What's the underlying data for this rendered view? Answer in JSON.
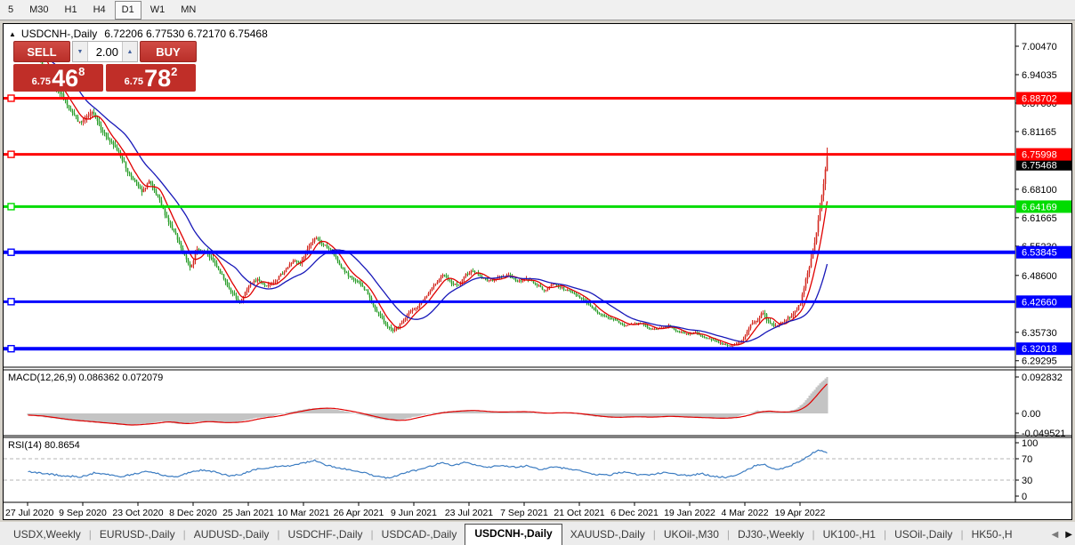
{
  "toolbar": {
    "items": [
      {
        "label": "5",
        "active": false
      },
      {
        "label": "M30",
        "active": false
      },
      {
        "label": "H1",
        "active": false
      },
      {
        "label": "H4",
        "active": false
      },
      {
        "label": "D1",
        "active": true
      },
      {
        "label": "W1",
        "active": false
      },
      {
        "label": "MN",
        "active": false
      }
    ]
  },
  "chart": {
    "collapse_arrow": "▲",
    "symbol": "USDCNH-,Daily",
    "ohlc": "6.72206 6.77530 6.72170 6.75468"
  },
  "trade_panel": {
    "sell_label": "SELL",
    "buy_label": "BUY",
    "volume": "2.00",
    "spinner_down": "▼",
    "spinner_up": "▲",
    "sell_price": {
      "prefix": "6.75",
      "big": "46",
      "sup": "8"
    },
    "buy_price": {
      "prefix": "6.75",
      "big": "78",
      "sup": "2"
    },
    "button_color": "#c8423c",
    "price_box_color": "#c02e28"
  },
  "indicators": {
    "macd_label": "MACD(12,26,9) 0.086362 0.072079",
    "rsi_label": "RSI(14) 80.8654"
  },
  "price_axis": {
    "ticks": [
      {
        "v": 7.0047,
        "label": "7.00470"
      },
      {
        "v": 6.94035,
        "label": "6.94035"
      },
      {
        "v": 6.876,
        "label": "6.87600"
      },
      {
        "v": 6.81165,
        "label": "6.81165"
      },
      {
        "v": 6.681,
        "label": "6.68100"
      },
      {
        "v": 6.61665,
        "label": "6.61665"
      },
      {
        "v": 6.5523,
        "label": "6.55230"
      },
      {
        "v": 6.486,
        "label": "6.48600"
      },
      {
        "v": 6.3573,
        "label": "6.35730"
      },
      {
        "v": 6.29295,
        "label": "6.29295"
      }
    ],
    "line_labels": [
      {
        "v": 6.88702,
        "label": "6.88702",
        "color": "#fe0000",
        "thickness": 3
      },
      {
        "v": 6.75998,
        "label": "6.75998",
        "color": "#fe0000",
        "thickness": 3
      },
      {
        "v": 6.64169,
        "label": "6.64169",
        "color": "#00dc00",
        "thickness": 3
      },
      {
        "v": 6.53845,
        "label": "6.53845",
        "color": "#0000fe",
        "thickness": 4
      },
      {
        "v": 6.4266,
        "label": "6.42660",
        "color": "#0000fe",
        "thickness": 3
      },
      {
        "v": 6.32018,
        "label": "6.32018",
        "color": "#0000fe",
        "thickness": 4
      }
    ],
    "last_price": {
      "v": 6.75468,
      "label": "6.75468",
      "bg": "#000000"
    }
  },
  "macd_axis": {
    "ticks": [
      {
        "v": 0.092832,
        "label": "0.092832"
      },
      {
        "v": 0.0,
        "label": "0.00"
      },
      {
        "v": -0.049521,
        "label": "-0.049521"
      }
    ]
  },
  "rsi_axis": {
    "ticks": [
      {
        "v": 100,
        "label": "100",
        "dashed": false
      },
      {
        "v": 70,
        "label": "70",
        "dashed": true
      },
      {
        "v": 30,
        "label": "30",
        "dashed": true
      },
      {
        "v": 0,
        "label": "0",
        "dashed": false
      }
    ]
  },
  "date_axis": [
    "27 Jul 2020",
    "9 Sep 2020",
    "23 Oct 2020",
    "8 Dec 2020",
    "25 Jan 2021",
    "10 Mar 2021",
    "26 Apr 2021",
    "9 Jun 2021",
    "23 Jul 2021",
    "7 Sep 2021",
    "21 Oct 2021",
    "6 Dec 2021",
    "19 Jan 2022",
    "4 Mar 2022",
    "19 Apr 2022"
  ],
  "tabs": {
    "items": [
      {
        "label": "USDX,Weekly",
        "active": false
      },
      {
        "label": "EURUSD-,Daily",
        "active": false
      },
      {
        "label": "AUDUSD-,Daily",
        "active": false
      },
      {
        "label": "USDCHF-,Daily",
        "active": false
      },
      {
        "label": "USDCAD-,Daily",
        "active": false
      },
      {
        "label": "USDCNH-,Daily",
        "active": true
      },
      {
        "label": "XAUUSD-,Daily",
        "active": false
      },
      {
        "label": "UKOil-,M30",
        "active": false
      },
      {
        "label": "DJ30-,Weekly",
        "active": false
      },
      {
        "label": "UK100-,H1",
        "active": false
      },
      {
        "label": "USOil-,Daily",
        "active": false
      },
      {
        "label": "HK50-,H",
        "active": false
      }
    ],
    "scroll_left": "◀",
    "scroll_right": "▶"
  },
  "chart_data": {
    "type": "candlestick",
    "symbol": "USDCNH-",
    "timeframe": "Daily",
    "title": "USDCNH-,Daily",
    "last_bar": {
      "open": 6.72206,
      "high": 6.7753,
      "low": 6.7217,
      "close": 6.75468
    },
    "price_range": [
      6.29295,
      7.0047
    ],
    "horizontal_levels": [
      6.88702,
      6.75998,
      6.64169,
      6.53845,
      6.4266,
      6.32018
    ],
    "x_tick_labels": [
      "27 Jul 2020",
      "9 Sep 2020",
      "23 Oct 2020",
      "8 Dec 2020",
      "25 Jan 2021",
      "10 Mar 2021",
      "26 Apr 2021",
      "9 Jun 2021",
      "23 Jul 2021",
      "7 Sep 2021",
      "21 Oct 2021",
      "6 Dec 2021",
      "19 Jan 2022",
      "4 Mar 2022",
      "19 Apr 2022"
    ],
    "price_path": [
      [
        0.0,
        6.99,
        0.012
      ],
      [
        0.009,
        7.0,
        0.012
      ],
      [
        0.018,
        6.962,
        0.012
      ],
      [
        0.029,
        6.93,
        0.012
      ],
      [
        0.04,
        6.9,
        0.011
      ],
      [
        0.051,
        6.868,
        0.011
      ],
      [
        0.065,
        6.83,
        0.011
      ],
      [
        0.073,
        6.842,
        0.011
      ],
      [
        0.082,
        6.856,
        0.011
      ],
      [
        0.091,
        6.82,
        0.011
      ],
      [
        0.102,
        6.79,
        0.011
      ],
      [
        0.114,
        6.765,
        0.011
      ],
      [
        0.125,
        6.72,
        0.011
      ],
      [
        0.134,
        6.7,
        0.01
      ],
      [
        0.143,
        6.672,
        0.01
      ],
      [
        0.151,
        6.7,
        0.01
      ],
      [
        0.163,
        6.66,
        0.01
      ],
      [
        0.174,
        6.615,
        0.01
      ],
      [
        0.185,
        6.575,
        0.01
      ],
      [
        0.196,
        6.53,
        0.01
      ],
      [
        0.203,
        6.505,
        0.01
      ],
      [
        0.212,
        6.545,
        0.01
      ],
      [
        0.223,
        6.538,
        0.009
      ],
      [
        0.234,
        6.512,
        0.009
      ],
      [
        0.245,
        6.478,
        0.009
      ],
      [
        0.254,
        6.45,
        0.009
      ],
      [
        0.265,
        6.42,
        0.009
      ],
      [
        0.276,
        6.462,
        0.009
      ],
      [
        0.287,
        6.478,
        0.008
      ],
      [
        0.298,
        6.462,
        0.008
      ],
      [
        0.31,
        6.475,
        0.008
      ],
      [
        0.321,
        6.496,
        0.008
      ],
      [
        0.332,
        6.52,
        0.008
      ],
      [
        0.341,
        6.512,
        0.008
      ],
      [
        0.35,
        6.548,
        0.009
      ],
      [
        0.359,
        6.572,
        0.009
      ],
      [
        0.367,
        6.558,
        0.008
      ],
      [
        0.379,
        6.545,
        0.008
      ],
      [
        0.39,
        6.51,
        0.008
      ],
      [
        0.401,
        6.484,
        0.008
      ],
      [
        0.412,
        6.472,
        0.008
      ],
      [
        0.423,
        6.452,
        0.008
      ],
      [
        0.434,
        6.412,
        0.008
      ],
      [
        0.445,
        6.382,
        0.008
      ],
      [
        0.457,
        6.358,
        0.008
      ],
      [
        0.465,
        6.372,
        0.008
      ],
      [
        0.477,
        6.402,
        0.007
      ],
      [
        0.488,
        6.415,
        0.007
      ],
      [
        0.499,
        6.44,
        0.007
      ],
      [
        0.51,
        6.468,
        0.007
      ],
      [
        0.519,
        6.488,
        0.007
      ],
      [
        0.53,
        6.468,
        0.007
      ],
      [
        0.539,
        6.462,
        0.007
      ],
      [
        0.548,
        6.488,
        0.007
      ],
      [
        0.557,
        6.498,
        0.007
      ],
      [
        0.568,
        6.48,
        0.006
      ],
      [
        0.579,
        6.474,
        0.006
      ],
      [
        0.59,
        6.482,
        0.006
      ],
      [
        0.601,
        6.488,
        0.006
      ],
      [
        0.612,
        6.472,
        0.006
      ],
      [
        0.624,
        6.478,
        0.006
      ],
      [
        0.635,
        6.468,
        0.006
      ],
      [
        0.646,
        6.452,
        0.006
      ],
      [
        0.657,
        6.468,
        0.006
      ],
      [
        0.668,
        6.458,
        0.006
      ],
      [
        0.679,
        6.448,
        0.006
      ],
      [
        0.69,
        6.438,
        0.006
      ],
      [
        0.701,
        6.422,
        0.006
      ],
      [
        0.713,
        6.402,
        0.006
      ],
      [
        0.724,
        6.39,
        0.005
      ],
      [
        0.735,
        6.385,
        0.005
      ],
      [
        0.746,
        6.372,
        0.005
      ],
      [
        0.757,
        6.377,
        0.005
      ],
      [
        0.768,
        6.378,
        0.005
      ],
      [
        0.779,
        6.364,
        0.005
      ],
      [
        0.791,
        6.366,
        0.005
      ],
      [
        0.802,
        6.372,
        0.005
      ],
      [
        0.813,
        6.359,
        0.005
      ],
      [
        0.824,
        6.353,
        0.005
      ],
      [
        0.835,
        6.357,
        0.005
      ],
      [
        0.846,
        6.346,
        0.005
      ],
      [
        0.857,
        6.34,
        0.005
      ],
      [
        0.869,
        6.332,
        0.006
      ],
      [
        0.878,
        6.325,
        0.006
      ],
      [
        0.886,
        6.33,
        0.006
      ],
      [
        0.895,
        6.34,
        0.007
      ],
      [
        0.904,
        6.372,
        0.009
      ],
      [
        0.913,
        6.385,
        0.009
      ],
      [
        0.92,
        6.403,
        0.01
      ],
      [
        0.926,
        6.382,
        0.009
      ],
      [
        0.933,
        6.372,
        0.008
      ],
      [
        0.94,
        6.376,
        0.008
      ],
      [
        0.946,
        6.383,
        0.008
      ],
      [
        0.953,
        6.392,
        0.008
      ],
      [
        0.96,
        6.405,
        0.009
      ],
      [
        0.967,
        6.425,
        0.01
      ],
      [
        0.973,
        6.472,
        0.012
      ],
      [
        0.98,
        6.522,
        0.014
      ],
      [
        0.987,
        6.585,
        0.016
      ],
      [
        0.993,
        6.66,
        0.018
      ],
      [
        1.0,
        6.7547,
        0.016
      ]
    ],
    "macd": {
      "params": "12,26,9",
      "current_main": 0.086362,
      "current_signal": 0.072079,
      "range": [
        -0.049521,
        0.092832
      ],
      "path": [
        [
          0.0,
          -0.004
        ],
        [
          0.045,
          -0.016
        ],
        [
          0.089,
          -0.024
        ],
        [
          0.122,
          -0.03
        ],
        [
          0.15,
          -0.026
        ],
        [
          0.167,
          -0.02
        ],
        [
          0.189,
          -0.027
        ],
        [
          0.217,
          -0.02
        ],
        [
          0.239,
          -0.024
        ],
        [
          0.262,
          -0.022
        ],
        [
          0.284,
          -0.012
        ],
        [
          0.306,
          -0.007
        ],
        [
          0.328,
          0.004
        ],
        [
          0.351,
          0.012
        ],
        [
          0.373,
          0.014
        ],
        [
          0.395,
          0.006
        ],
        [
          0.418,
          -0.004
        ],
        [
          0.44,
          -0.015
        ],
        [
          0.462,
          -0.019
        ],
        [
          0.484,
          -0.008
        ],
        [
          0.507,
          0.001
        ],
        [
          0.529,
          0.006
        ],
        [
          0.551,
          0.008
        ],
        [
          0.573,
          0.004
        ],
        [
          0.596,
          0.004
        ],
        [
          0.618,
          0.005
        ],
        [
          0.64,
          0.0
        ],
        [
          0.663,
          0.003
        ],
        [
          0.685,
          -0.001
        ],
        [
          0.707,
          -0.007
        ],
        [
          0.729,
          -0.011
        ],
        [
          0.752,
          -0.008
        ],
        [
          0.774,
          -0.01
        ],
        [
          0.796,
          -0.007
        ],
        [
          0.818,
          -0.009
        ],
        [
          0.841,
          -0.011
        ],
        [
          0.863,
          -0.013
        ],
        [
          0.885,
          -0.009
        ],
        [
          0.902,
          0.001
        ],
        [
          0.913,
          0.007
        ],
        [
          0.924,
          0.005
        ],
        [
          0.938,
          0.003
        ],
        [
          0.951,
          0.005
        ],
        [
          0.962,
          0.012
        ],
        [
          0.971,
          0.028
        ],
        [
          0.98,
          0.05
        ],
        [
          0.989,
          0.072
        ],
        [
          0.996,
          0.086
        ],
        [
          1.0,
          0.093
        ]
      ]
    },
    "rsi": {
      "period": 14,
      "current": 80.8654,
      "levels": [
        30,
        70
      ],
      "path": [
        [
          0.0,
          46
        ],
        [
          0.022,
          42
        ],
        [
          0.045,
          38
        ],
        [
          0.067,
          36
        ],
        [
          0.084,
          44
        ],
        [
          0.1,
          40
        ],
        [
          0.117,
          37
        ],
        [
          0.134,
          42
        ],
        [
          0.15,
          47
        ],
        [
          0.167,
          40
        ],
        [
          0.184,
          36
        ],
        [
          0.2,
          43
        ],
        [
          0.217,
          49
        ],
        [
          0.234,
          45
        ],
        [
          0.251,
          38
        ],
        [
          0.267,
          41
        ],
        [
          0.284,
          50
        ],
        [
          0.301,
          53
        ],
        [
          0.317,
          56
        ],
        [
          0.334,
          58
        ],
        [
          0.351,
          64
        ],
        [
          0.359,
          67
        ],
        [
          0.37,
          59
        ],
        [
          0.386,
          54
        ],
        [
          0.403,
          49
        ],
        [
          0.42,
          44
        ],
        [
          0.437,
          37
        ],
        [
          0.453,
          33
        ],
        [
          0.47,
          43
        ],
        [
          0.487,
          49
        ],
        [
          0.503,
          56
        ],
        [
          0.518,
          62
        ],
        [
          0.532,
          57
        ],
        [
          0.546,
          63
        ],
        [
          0.559,
          59
        ],
        [
          0.576,
          54
        ],
        [
          0.592,
          58
        ],
        [
          0.609,
          54
        ],
        [
          0.626,
          57
        ],
        [
          0.643,
          49
        ],
        [
          0.659,
          55
        ],
        [
          0.676,
          51
        ],
        [
          0.693,
          47
        ],
        [
          0.709,
          41
        ],
        [
          0.726,
          39
        ],
        [
          0.743,
          45
        ],
        [
          0.759,
          41
        ],
        [
          0.776,
          39
        ],
        [
          0.793,
          44
        ],
        [
          0.809,
          41
        ],
        [
          0.826,
          39
        ],
        [
          0.843,
          42
        ],
        [
          0.859,
          37
        ],
        [
          0.876,
          35
        ],
        [
          0.893,
          43
        ],
        [
          0.908,
          56
        ],
        [
          0.919,
          61
        ],
        [
          0.93,
          52
        ],
        [
          0.941,
          50
        ],
        [
          0.952,
          56
        ],
        [
          0.963,
          63
        ],
        [
          0.974,
          73
        ],
        [
          0.983,
          82
        ],
        [
          0.99,
          87
        ],
        [
          0.996,
          83
        ],
        [
          1.0,
          81
        ]
      ]
    },
    "colors": {
      "up": "#d32a21",
      "down": "#2c9e2c",
      "ma_fast": "#e00000",
      "ma_slow": "#1717b8",
      "macd_hist": "#c4c4c4",
      "macd_signal": "#e00000",
      "rsi_line": "#3d7dc2"
    }
  }
}
